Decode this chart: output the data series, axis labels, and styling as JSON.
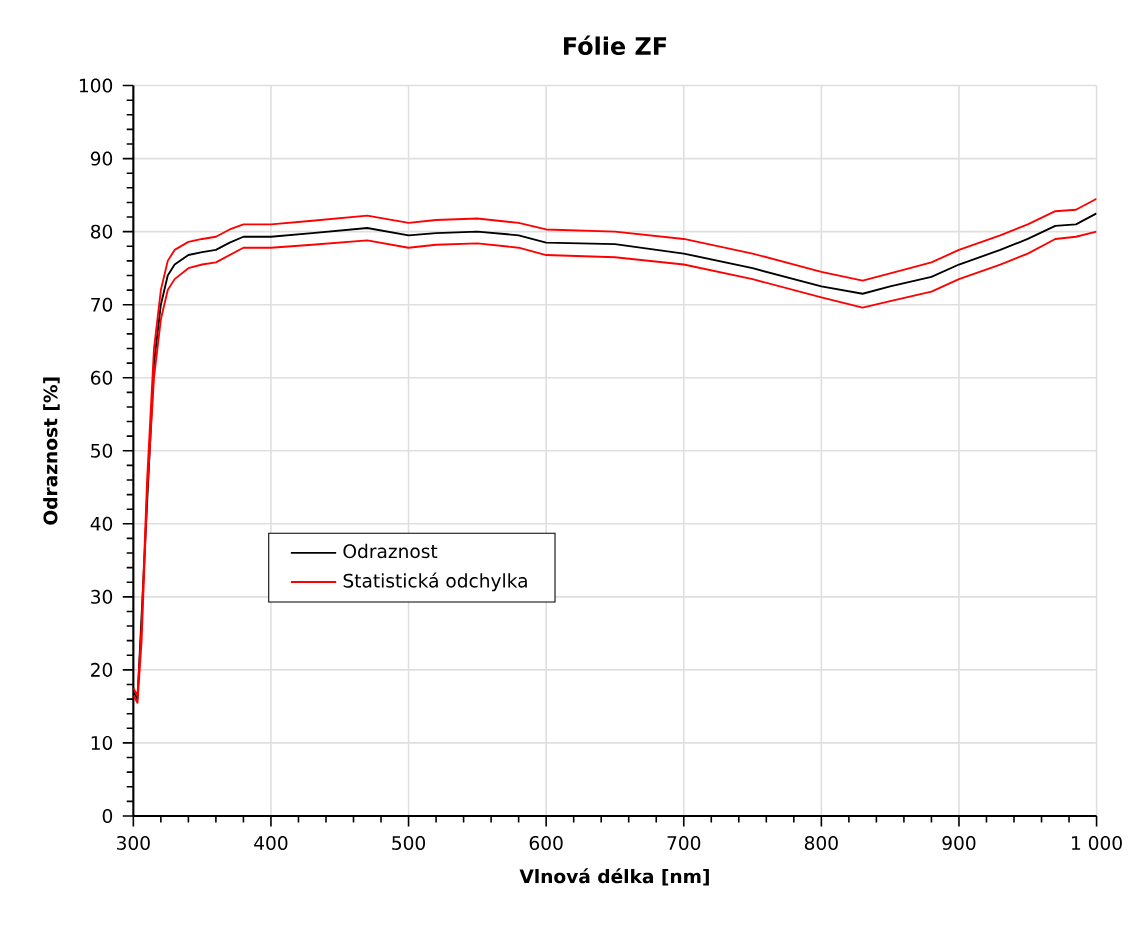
{
  "chart_data": {
    "type": "line",
    "title": "Fólie ZF",
    "xlabel": "Vlnová délka [nm]",
    "ylabel": "Odraznost [%]",
    "xlim": [
      300,
      1000
    ],
    "ylim": [
      0,
      100
    ],
    "xticks": [
      300,
      400,
      500,
      600,
      700,
      800,
      900,
      {
        "value": 1000,
        "label": "1 000"
      }
    ],
    "yticks": [
      0,
      10,
      20,
      30,
      40,
      50,
      60,
      70,
      80,
      90,
      100
    ],
    "grid": true,
    "legend": "left",
    "x": [
      300,
      303,
      306,
      310,
      315,
      320,
      325,
      330,
      340,
      350,
      360,
      370,
      380,
      400,
      430,
      470,
      500,
      520,
      550,
      580,
      600,
      650,
      700,
      750,
      800,
      830,
      850,
      880,
      900,
      930,
      950,
      970,
      985,
      1000
    ],
    "series": [
      {
        "name": "Odraznost",
        "color": "#000000",
        "values": [
          17,
          16,
          null,
          null,
          62,
          70,
          74,
          75.5,
          76.8,
          77.2,
          77.5,
          78.5,
          79.3,
          79.3,
          79.8,
          80.5,
          79.5,
          79.8,
          80,
          79.5,
          78.5,
          78.3,
          77,
          75,
          72.5,
          71.5,
          72.5,
          73.8,
          75.5,
          77.5,
          79,
          80.8,
          81,
          82.5
        ]
      },
      {
        "name": "Statistická odchylka",
        "color": "#ff0000",
        "values": [
          17.5,
          16.5,
          26,
          46,
          64,
          72,
          76,
          77.5,
          78.6,
          79,
          79.3,
          80.3,
          81,
          81,
          81.5,
          82.2,
          81.2,
          81.6,
          81.8,
          81.2,
          80.3,
          80,
          79,
          77,
          74.5,
          73.3,
          74.3,
          75.8,
          77.5,
          79.5,
          81,
          82.8,
          83,
          84.5
        ]
      },
      {
        "color": "#ff0000",
        "values": [
          16.5,
          15.5,
          24,
          44,
          60,
          68,
          72,
          73.5,
          75,
          75.5,
          75.8,
          76.8,
          77.8,
          77.8,
          78.2,
          78.8,
          77.8,
          78.2,
          78.4,
          77.8,
          76.8,
          76.5,
          75.5,
          73.5,
          71,
          69.6,
          70.5,
          71.8,
          73.5,
          75.5,
          77,
          79,
          79.3,
          80
        ]
      }
    ]
  }
}
